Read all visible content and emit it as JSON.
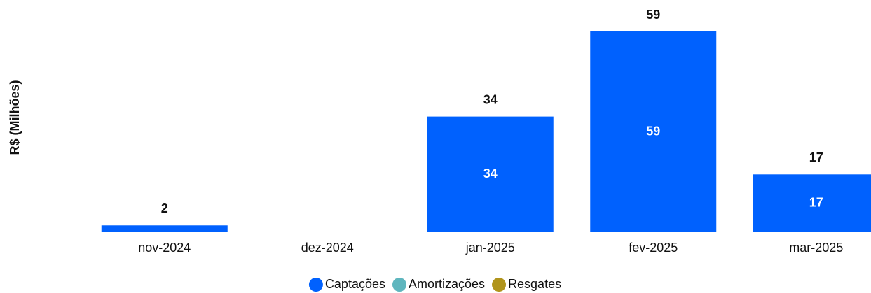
{
  "chart_data": {
    "type": "stacked_bar",
    "y_label": "R$ (Milhões)",
    "categories": [
      "nov-2024",
      "dez-2024",
      "jan-2025",
      "fev-2025",
      "mar-2025"
    ],
    "series": [
      {
        "name": "Captações",
        "color": "#0061fe",
        "values": [
          2,
          null,
          34,
          59,
          17
        ]
      },
      {
        "name": "Amortizações",
        "color": "#5fb6be",
        "values": [
          null,
          null,
          null,
          null,
          null
        ]
      },
      {
        "name": "Resgates",
        "color": "#b0941c",
        "values": [
          null,
          null,
          null,
          null,
          null
        ]
      }
    ],
    "totals": [
      2,
      null,
      34,
      59,
      17
    ]
  }
}
